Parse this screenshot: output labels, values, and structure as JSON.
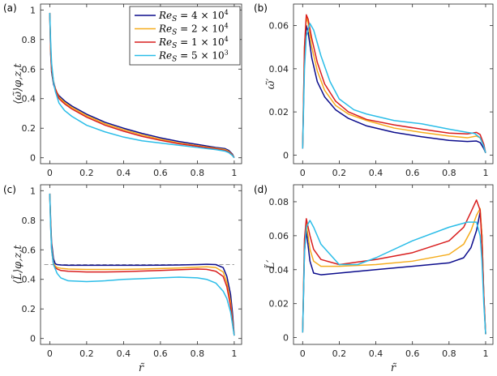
{
  "colors": {
    "axis": "#262626",
    "ref_line": "#999999"
  },
  "legend": [
    {
      "label": "Re",
      "sub": "S",
      "rhs": " = 4 × 10",
      "exp": "4",
      "color": "#0b0c8c"
    },
    {
      "label": "Re",
      "sub": "S",
      "rhs": " = 2 × 10",
      "exp": "4",
      "color": "#f5ac1c"
    },
    {
      "label": "Re",
      "sub": "S",
      "rhs": " = 1 × 10",
      "exp": "4",
      "color": "#d91e1e"
    },
    {
      "label": "Re",
      "sub": "S",
      "rhs": " = 5 × 10",
      "exp": "3",
      "color": "#2bbde8"
    }
  ],
  "chart_data": [
    {
      "panel": "(a)",
      "type": "line",
      "xlabel": "",
      "ylabel": "⟨ω̃⟩φ,z,t",
      "xlim": [
        -0.05,
        1.04
      ],
      "ylim": [
        -0.04,
        1.04
      ],
      "xticks": [
        0,
        0.2,
        0.4,
        0.6,
        0.8,
        1
      ],
      "yticks": [
        0,
        0.2,
        0.4,
        0.6,
        0.8,
        1
      ],
      "x": [
        0,
        0.005,
        0.01,
        0.02,
        0.03,
        0.05,
        0.08,
        0.12,
        0.2,
        0.3,
        0.4,
        0.5,
        0.6,
        0.7,
        0.8,
        0.9,
        0.95,
        0.97,
        0.99,
        1.0
      ],
      "series": [
        {
          "name": "ReS = 4 × 10^4",
          "values": [
            0.98,
            0.7,
            0.58,
            0.5,
            0.46,
            0.42,
            0.385,
            0.35,
            0.295,
            0.24,
            0.2,
            0.165,
            0.135,
            0.11,
            0.09,
            0.07,
            0.062,
            0.05,
            0.025,
            0.0
          ]
        },
        {
          "name": "ReS = 2 × 10^4",
          "values": [
            0.98,
            0.72,
            0.6,
            0.51,
            0.47,
            0.41,
            0.375,
            0.34,
            0.285,
            0.23,
            0.19,
            0.155,
            0.125,
            0.1,
            0.082,
            0.064,
            0.056,
            0.044,
            0.02,
            0.0
          ]
        },
        {
          "name": "ReS = 1 × 10^4",
          "values": [
            0.98,
            0.74,
            0.61,
            0.52,
            0.47,
            0.4,
            0.365,
            0.33,
            0.275,
            0.22,
            0.18,
            0.145,
            0.118,
            0.095,
            0.078,
            0.06,
            0.05,
            0.04,
            0.018,
            0.0
          ]
        },
        {
          "name": "ReS = 5 × 10^3",
          "values": [
            0.98,
            0.78,
            0.64,
            0.52,
            0.45,
            0.37,
            0.32,
            0.28,
            0.22,
            0.175,
            0.14,
            0.115,
            0.1,
            0.085,
            0.07,
            0.055,
            0.045,
            0.035,
            0.015,
            0.0
          ]
        }
      ]
    },
    {
      "panel": "(b)",
      "type": "line",
      "xlabel": "",
      "ylabel": "ω̃′",
      "xlim": [
        -0.05,
        1.04
      ],
      "ylim": [
        -0.004,
        0.07
      ],
      "xticks": [
        0,
        0.2,
        0.4,
        0.6,
        0.8,
        1
      ],
      "yticks": [
        0,
        0.02,
        0.04,
        0.06
      ],
      "series": [
        {
          "name": "ReS = 4 × 10^4",
          "x": [
            0.0,
            0.01,
            0.02,
            0.03,
            0.05,
            0.08,
            0.12,
            0.18,
            0.25,
            0.35,
            0.5,
            0.65,
            0.8,
            0.9,
            0.95,
            0.97,
            0.99,
            1.0
          ],
          "values": [
            0.003,
            0.045,
            0.06,
            0.057,
            0.045,
            0.034,
            0.027,
            0.021,
            0.017,
            0.0135,
            0.0105,
            0.0085,
            0.0068,
            0.0063,
            0.0065,
            0.0058,
            0.003,
            0.001
          ]
        },
        {
          "name": "ReS = 2 × 10^4",
          "x": [
            0.0,
            0.01,
            0.02,
            0.03,
            0.05,
            0.08,
            0.12,
            0.18,
            0.25,
            0.35,
            0.5,
            0.65,
            0.8,
            0.9,
            0.95,
            0.97,
            0.99,
            1.0
          ],
          "values": [
            0.003,
            0.05,
            0.064,
            0.061,
            0.05,
            0.039,
            0.03,
            0.023,
            0.019,
            0.016,
            0.0125,
            0.0105,
            0.0088,
            0.008,
            0.0088,
            0.008,
            0.004,
            0.001
          ]
        },
        {
          "name": "ReS = 1 × 10^4",
          "x": [
            0.0,
            0.01,
            0.02,
            0.03,
            0.05,
            0.08,
            0.12,
            0.18,
            0.25,
            0.35,
            0.5,
            0.65,
            0.8,
            0.9,
            0.95,
            0.97,
            0.99,
            1.0
          ],
          "values": [
            0.003,
            0.05,
            0.065,
            0.063,
            0.054,
            0.043,
            0.033,
            0.025,
            0.02,
            0.0165,
            0.014,
            0.012,
            0.0102,
            0.0098,
            0.0105,
            0.0095,
            0.005,
            0.001
          ]
        },
        {
          "name": "ReS = 5 × 10^3",
          "x": [
            0.0,
            0.01,
            0.02,
            0.04,
            0.06,
            0.1,
            0.15,
            0.2,
            0.28,
            0.35,
            0.5,
            0.65,
            0.8,
            0.9,
            0.94,
            0.97,
            0.99,
            1.0
          ],
          "values": [
            0.003,
            0.04,
            0.055,
            0.061,
            0.058,
            0.046,
            0.034,
            0.026,
            0.021,
            0.019,
            0.016,
            0.0145,
            0.012,
            0.0105,
            0.01,
            0.008,
            0.004,
            0.001
          ]
        }
      ]
    },
    {
      "panel": "(c)",
      "type": "line",
      "xlabel": "r̃",
      "ylabel": "⟨L̃⟩φ,z,t",
      "xlim": [
        -0.05,
        1.04
      ],
      "ylim": [
        -0.04,
        1.04
      ],
      "xticks": [
        0,
        0.2,
        0.4,
        0.6,
        0.8,
        1
      ],
      "yticks": [
        0,
        0.2,
        0.4,
        0.6,
        0.8,
        1
      ],
      "reference_line": {
        "y": 0.5,
        "style": "dashed"
      },
      "x": [
        0,
        0.005,
        0.01,
        0.02,
        0.03,
        0.04,
        0.06,
        0.1,
        0.2,
        0.3,
        0.4,
        0.5,
        0.6,
        0.7,
        0.8,
        0.85,
        0.9,
        0.94,
        0.96,
        0.98,
        0.99,
        1.0
      ],
      "series": [
        {
          "name": "ReS = 4 × 10^4",
          "values": [
            0.98,
            0.8,
            0.65,
            0.54,
            0.505,
            0.5,
            0.497,
            0.495,
            0.495,
            0.495,
            0.495,
            0.495,
            0.496,
            0.497,
            0.5,
            0.502,
            0.5,
            0.48,
            0.42,
            0.3,
            0.18,
            0.02
          ]
        },
        {
          "name": "ReS = 2 × 10^4",
          "values": [
            0.98,
            0.78,
            0.62,
            0.51,
            0.49,
            0.48,
            0.475,
            0.47,
            0.467,
            0.467,
            0.468,
            0.47,
            0.473,
            0.477,
            0.482,
            0.485,
            0.48,
            0.45,
            0.38,
            0.25,
            0.13,
            0.02
          ]
        },
        {
          "name": "ReS = 1 × 10^4",
          "values": [
            0.98,
            0.76,
            0.6,
            0.5,
            0.48,
            0.47,
            0.46,
            0.455,
            0.45,
            0.45,
            0.452,
            0.456,
            0.46,
            0.465,
            0.47,
            0.468,
            0.455,
            0.42,
            0.35,
            0.22,
            0.11,
            0.02
          ]
        },
        {
          "name": "ReS = 5 × 10^3",
          "values": [
            0.98,
            0.75,
            0.6,
            0.5,
            0.47,
            0.44,
            0.41,
            0.39,
            0.385,
            0.39,
            0.4,
            0.405,
            0.41,
            0.415,
            0.41,
            0.4,
            0.375,
            0.32,
            0.27,
            0.18,
            0.1,
            0.02
          ]
        }
      ]
    },
    {
      "panel": "(d)",
      "type": "line",
      "xlabel": "r̃",
      "ylabel": "L̃′",
      "xlim": [
        -0.05,
        1.04
      ],
      "ylim": [
        -0.004,
        0.09
      ],
      "xticks": [
        0,
        0.2,
        0.4,
        0.6,
        0.8,
        1
      ],
      "yticks": [
        0,
        0.02,
        0.04,
        0.06,
        0.08
      ],
      "series": [
        {
          "name": "ReS = 4 × 10^4",
          "x": [
            0.0,
            0.01,
            0.02,
            0.04,
            0.06,
            0.1,
            0.2,
            0.4,
            0.6,
            0.8,
            0.88,
            0.92,
            0.95,
            0.97,
            0.98,
            0.99,
            1.0
          ],
          "values": [
            0.003,
            0.05,
            0.063,
            0.045,
            0.038,
            0.037,
            0.038,
            0.04,
            0.042,
            0.044,
            0.047,
            0.053,
            0.063,
            0.074,
            0.06,
            0.025,
            0.002
          ]
        },
        {
          "name": "ReS = 2 × 10^4",
          "x": [
            0.0,
            0.01,
            0.02,
            0.04,
            0.06,
            0.1,
            0.2,
            0.4,
            0.6,
            0.8,
            0.88,
            0.92,
            0.95,
            0.97,
            0.98,
            0.99,
            1.0
          ],
          "values": [
            0.003,
            0.055,
            0.067,
            0.052,
            0.045,
            0.042,
            0.042,
            0.043,
            0.045,
            0.049,
            0.055,
            0.063,
            0.072,
            0.076,
            0.06,
            0.025,
            0.002
          ]
        },
        {
          "name": "ReS = 1 × 10^4",
          "x": [
            0.0,
            0.01,
            0.02,
            0.04,
            0.06,
            0.1,
            0.2,
            0.4,
            0.6,
            0.8,
            0.88,
            0.92,
            0.95,
            0.97,
            0.98,
            0.99,
            1.0
          ],
          "values": [
            0.003,
            0.058,
            0.07,
            0.06,
            0.052,
            0.046,
            0.043,
            0.046,
            0.05,
            0.057,
            0.065,
            0.074,
            0.081,
            0.075,
            0.055,
            0.025,
            0.002
          ]
        },
        {
          "name": "ReS = 5 × 10^3",
          "x": [
            0.0,
            0.01,
            0.02,
            0.04,
            0.06,
            0.1,
            0.2,
            0.3,
            0.4,
            0.6,
            0.8,
            0.9,
            0.95,
            0.97,
            0.98,
            0.99,
            1.0
          ],
          "values": [
            0.003,
            0.05,
            0.065,
            0.069,
            0.065,
            0.055,
            0.043,
            0.043,
            0.047,
            0.057,
            0.065,
            0.068,
            0.068,
            0.06,
            0.045,
            0.02,
            0.002
          ]
        }
      ]
    }
  ]
}
